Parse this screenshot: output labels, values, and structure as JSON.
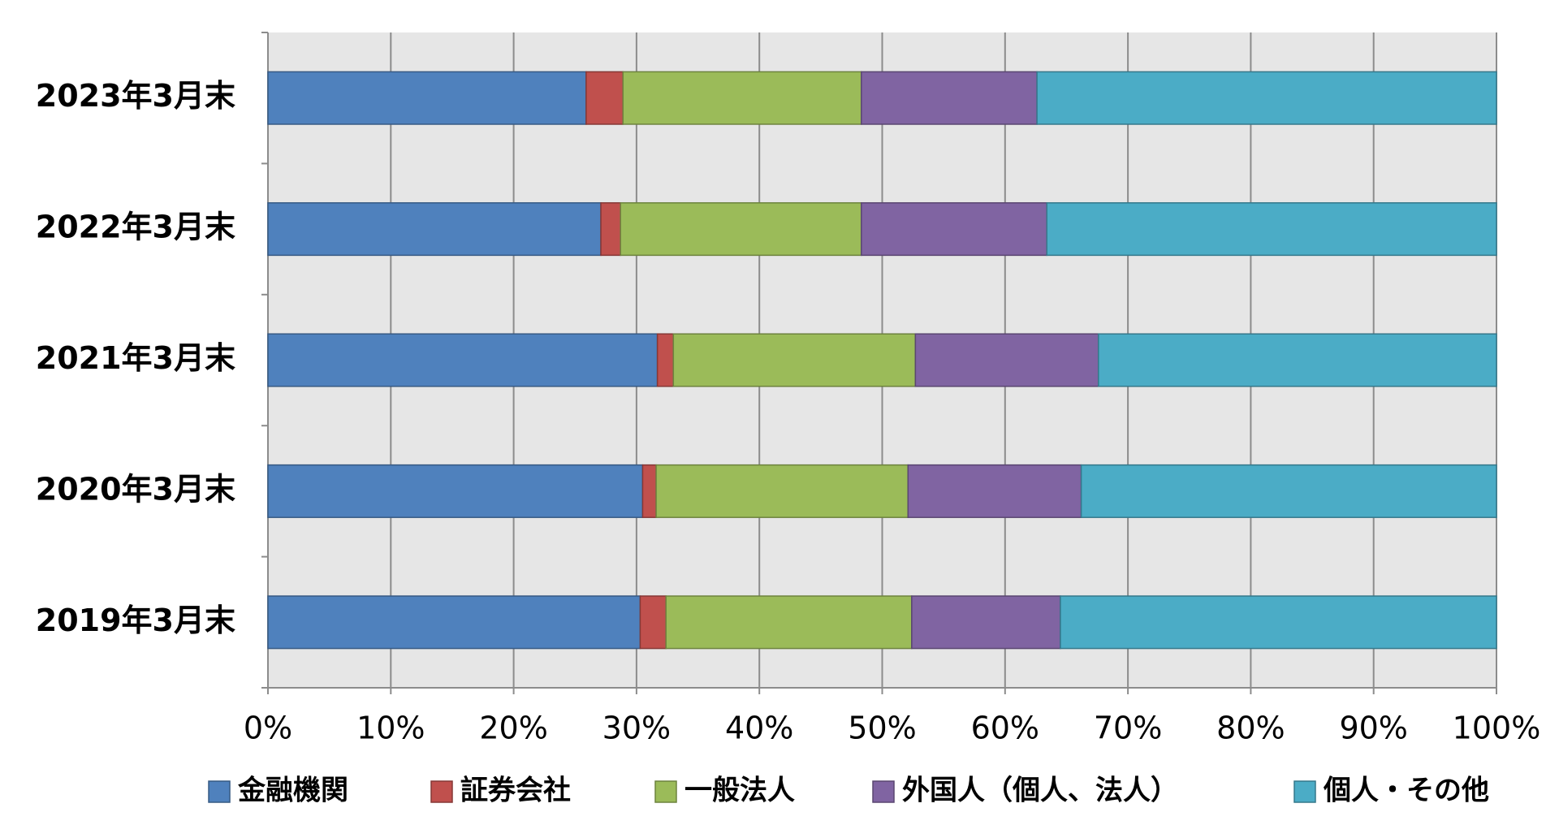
{
  "chart_data": {
    "type": "stacked-bar-horizontal",
    "categories": [
      "2023年3月末",
      "2022年3月末",
      "2021年3月末",
      "2020年3月末",
      "2019年3月末"
    ],
    "series": [
      {
        "name": "金融機関",
        "color": "#4f81bd",
        "values": [
          25.9,
          27.1,
          31.7,
          30.5,
          30.3
        ]
      },
      {
        "name": "証券会社",
        "color": "#c0504d",
        "values": [
          3.0,
          1.6,
          1.3,
          1.1,
          2.1
        ]
      },
      {
        "name": "一般法人",
        "color": "#9bbb59",
        "values": [
          19.4,
          19.6,
          19.7,
          20.5,
          20.0
        ]
      },
      {
        "name": "外国人（個人、法人）",
        "color": "#8064a2",
        "values": [
          14.3,
          15.1,
          14.9,
          14.1,
          12.1
        ]
      },
      {
        "name": "個人・その他",
        "color": "#4bacc6",
        "values": [
          37.4,
          36.6,
          32.4,
          33.8,
          35.5
        ]
      }
    ],
    "xlim": [
      0,
      100
    ],
    "xticks": [
      {
        "value": 0,
        "label": "0%"
      },
      {
        "value": 10,
        "label": "10%"
      },
      {
        "value": 20,
        "label": "20%"
      },
      {
        "value": 30,
        "label": "30%"
      },
      {
        "value": 40,
        "label": "40%"
      },
      {
        "value": 50,
        "label": "50%"
      },
      {
        "value": 60,
        "label": "60%"
      },
      {
        "value": 70,
        "label": "70%"
      },
      {
        "value": 80,
        "label": "80%"
      },
      {
        "value": 90,
        "label": "90%"
      },
      {
        "value": 100,
        "label": "100%"
      }
    ],
    "grid": true,
    "legend": "bottom"
  }
}
